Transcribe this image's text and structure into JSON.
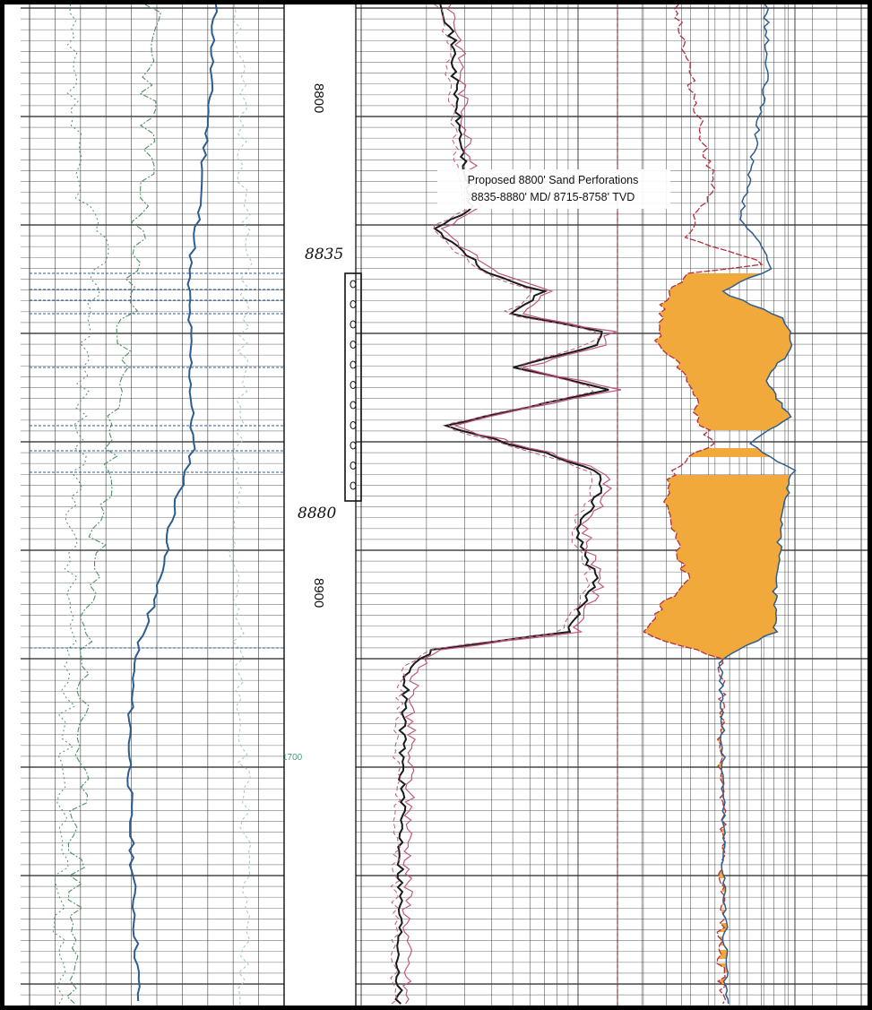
{
  "chart_data": {
    "type": "line",
    "title": "",
    "depth_axis": {
      "labels": [
        "8800",
        "8900"
      ],
      "range": [
        8770,
        8975
      ]
    },
    "handwritten_marks": [
      "8835",
      "8880"
    ],
    "curve_tick": "1700",
    "annotation": {
      "line1": "Proposed 8800' Sand Perforations",
      "line2": "8835-8880' MD/ 8715-8758' TVD"
    },
    "perforation_interval": {
      "top": 8835,
      "bottom": 8880,
      "shots": 11
    },
    "colors": {
      "blue": "#2d5d8f",
      "green": "#4e8f66",
      "light_green": "#9ec9b4",
      "black": "#1a1a1a",
      "pink": "#c0577f",
      "red": "#b03040",
      "fill": "#f2a93b",
      "grid": "#333333"
    }
  }
}
